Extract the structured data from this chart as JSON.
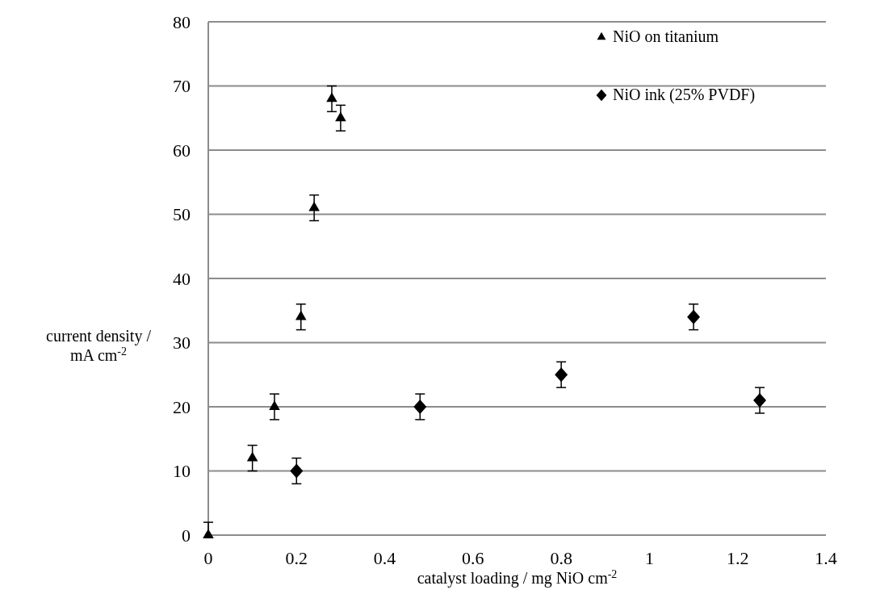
{
  "chart_data": {
    "type": "scatter",
    "xlabel": "catalyst loading / mg NiO cm$^{-2}$",
    "ylabel": "current density / mA cm$^{-2}$",
    "xlim": [
      0,
      1.4
    ],
    "xticks": [
      0,
      0.2,
      0.4,
      0.6,
      0.8,
      1,
      1.2,
      1.4
    ],
    "ylim": [
      0,
      80
    ],
    "yticks": [
      0,
      10,
      20,
      30,
      40,
      50,
      60,
      70,
      80
    ],
    "grid": "y",
    "legend": "top right",
    "series": [
      {
        "name": "NiO on titanium",
        "color": "#000000",
        "marker": "triangle",
        "x": [
          0,
          0.1,
          0.15,
          0.21,
          0.24,
          0.28,
          0.3
        ],
        "values": [
          0,
          12,
          20,
          34,
          51,
          68,
          65
        ],
        "errors": [
          [
            0,
            2
          ],
          2,
          2,
          2,
          2,
          2,
          2
        ]
      },
      {
        "name": "NiO ink (25% PVDF)",
        "color": "#000000",
        "marker": "diamond",
        "x": [
          0.2,
          0.48,
          0.8,
          1.1,
          1.25
        ],
        "values": [
          10,
          20,
          25,
          34,
          21
        ],
        "errors": [
          2,
          2,
          2,
          2,
          2
        ]
      }
    ]
  }
}
